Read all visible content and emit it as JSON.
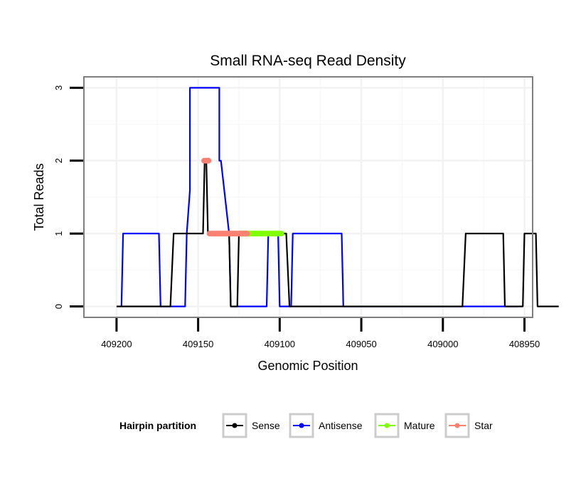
{
  "chart_data": {
    "type": "line",
    "title": "Small RNA-seq Read Density",
    "xlabel": "Genomic Position",
    "ylabel": "Total Reads",
    "xlim": [
      409220,
      408945
    ],
    "ylim": [
      -0.15,
      3.15
    ],
    "x_reversed": true,
    "grid": true,
    "x_ticks": [
      409200,
      409150,
      409100,
      409050,
      409000,
      408950
    ],
    "x_tick_labels": [
      "409200",
      "409150",
      "409100",
      "409050",
      "409000",
      "408950"
    ],
    "y_ticks": [
      0,
      1,
      2,
      3
    ],
    "y_tick_labels": [
      "0",
      "1",
      "2",
      "3"
    ],
    "legend": {
      "title": "Hairpin partition",
      "position": "bottom",
      "entries": [
        {
          "name": "Sense",
          "color": "#000000"
        },
        {
          "name": "Antisense",
          "color": "#0000ff"
        },
        {
          "name": "Mature",
          "color": "#7fff00"
        },
        {
          "name": "Star",
          "color": "#fa8072"
        }
      ]
    },
    "series": [
      {
        "name": "Antisense",
        "kind": "line",
        "color": "#0000ff",
        "x": [
          409197,
          409196,
          409174,
          409173,
          409158,
          409157,
          409155,
          409155,
          409155,
          409137,
          409137,
          409136,
          409131,
          409130,
          409108,
          409107,
          409101,
          409100,
          409093,
          409092,
          409085,
          409084,
          409062,
          409061,
          408998,
          408996,
          408954
        ],
        "y": [
          0,
          1,
          1,
          0,
          0,
          1,
          1.6,
          2.7,
          3,
          3,
          2,
          2,
          1,
          0,
          0,
          1,
          1,
          0,
          0,
          1,
          1,
          1,
          1,
          0,
          0,
          0,
          0
        ]
      },
      {
        "name": "Sense",
        "kind": "line",
        "color": "#000000",
        "x": [
          409200,
          409167,
          409165,
          409147,
          409146,
          409145,
          409144,
          409131,
          409130,
          409126,
          409125,
          409096,
          409094,
          408988,
          408986,
          408963,
          408962,
          408951,
          408950,
          408943,
          408942,
          408929
        ],
        "y": [
          0,
          0,
          1,
          1,
          2,
          2,
          1,
          1,
          0,
          0,
          1,
          1,
          0,
          0,
          1,
          1,
          0,
          0,
          1,
          1,
          0,
          0
        ]
      },
      {
        "name": "Mature",
        "kind": "segment",
        "color": "#7fff00",
        "x": [
          409124,
          409099
        ],
        "y": [
          1,
          1
        ]
      },
      {
        "name": "Star",
        "kind": "segment",
        "color": "#fa8072",
        "x": [
          409143,
          409120
        ],
        "y": [
          1,
          1
        ]
      },
      {
        "name": "Star peak",
        "kind": "point",
        "color": "#fa8072",
        "x": [
          409145
        ],
        "y": [
          2
        ]
      }
    ]
  }
}
